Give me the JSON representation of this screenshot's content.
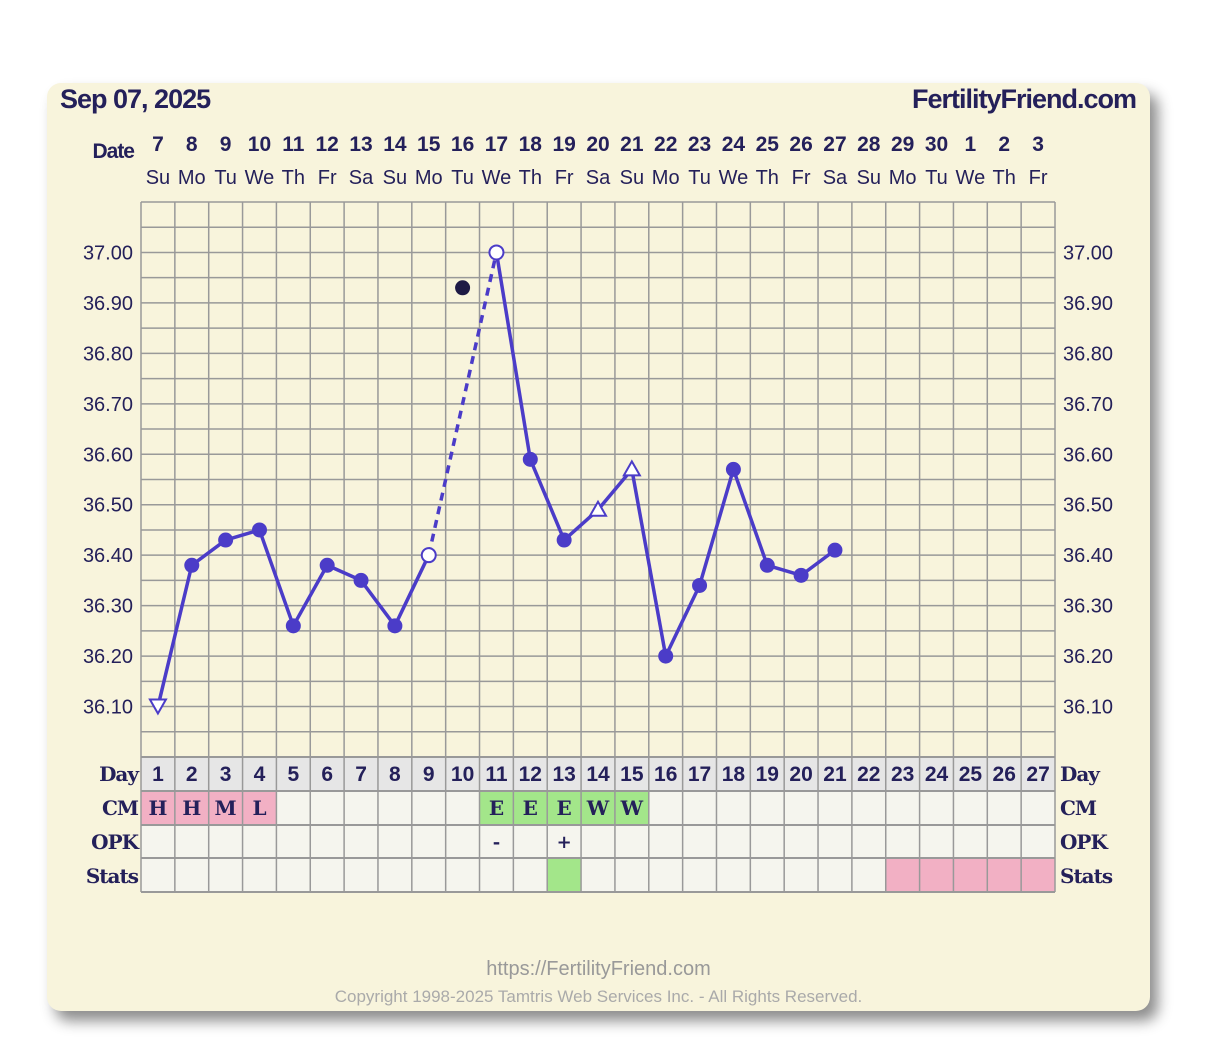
{
  "header": {
    "date": "Sep 07, 2025",
    "site": "FertilityFriend.com"
  },
  "footer": {
    "url": "https://FertilityFriend.com",
    "copyright": "Copyright 1998-2025 Tamtris Web Services Inc. - All Rights Reserved."
  },
  "colors": {
    "line": "#4b3cc8",
    "text": "#24205a",
    "pink": "#f2b0c4",
    "green": "#a3e68a",
    "grid": "#999999"
  },
  "chart_data": {
    "type": "line",
    "title": "Sep 07, 2025",
    "row_labels": {
      "date": "Date",
      "day": "Day",
      "cm": "CM",
      "opk": "OPK",
      "stats": "Stats"
    },
    "dates": [
      "7",
      "8",
      "9",
      "10",
      "11",
      "12",
      "13",
      "14",
      "15",
      "16",
      "17",
      "18",
      "19",
      "20",
      "21",
      "22",
      "23",
      "24",
      "25",
      "26",
      "27",
      "28",
      "29",
      "30",
      "1",
      "2",
      "3"
    ],
    "weekdays": [
      "Su",
      "Mo",
      "Tu",
      "We",
      "Th",
      "Fr",
      "Sa",
      "Su",
      "Mo",
      "Tu",
      "We",
      "Th",
      "Fr",
      "Sa",
      "Su",
      "Mo",
      "Tu",
      "We",
      "Th",
      "Fr",
      "Sa",
      "Su",
      "Mo",
      "Tu",
      "We",
      "Th",
      "Fr"
    ],
    "days": [
      1,
      2,
      3,
      4,
      5,
      6,
      7,
      8,
      9,
      10,
      11,
      12,
      13,
      14,
      15,
      16,
      17,
      18,
      19,
      20,
      21,
      22,
      23,
      24,
      25,
      26,
      27
    ],
    "y_ticks": [
      "37.00",
      "36.90",
      "36.80",
      "36.70",
      "36.60",
      "36.50",
      "36.40",
      "36.30",
      "36.20",
      "36.10"
    ],
    "ylim": [
      36.0,
      37.1
    ],
    "temps": [
      {
        "day": 1,
        "v": 36.1,
        "m": "open-triangle"
      },
      {
        "day": 2,
        "v": 36.38,
        "m": "dot"
      },
      {
        "day": 3,
        "v": 36.43,
        "m": "dot"
      },
      {
        "day": 4,
        "v": 36.45,
        "m": "dot"
      },
      {
        "day": 5,
        "v": 36.26,
        "m": "dot"
      },
      {
        "day": 6,
        "v": 36.38,
        "m": "dot"
      },
      {
        "day": 7,
        "v": 36.35,
        "m": "dot"
      },
      {
        "day": 8,
        "v": 36.26,
        "m": "dot"
      },
      {
        "day": 9,
        "v": 36.4,
        "m": "open-circle"
      },
      {
        "day": 10,
        "v": 36.93,
        "m": "excluded"
      },
      {
        "day": 11,
        "v": 37.0,
        "m": "open-circle"
      },
      {
        "day": 12,
        "v": 36.59,
        "m": "dot"
      },
      {
        "day": 13,
        "v": 36.43,
        "m": "dot"
      },
      {
        "day": 14,
        "v": 36.49,
        "m": "open-triangle"
      },
      {
        "day": 15,
        "v": 36.57,
        "m": "open-triangle"
      },
      {
        "day": 16,
        "v": 36.2,
        "m": "dot"
      },
      {
        "day": 17,
        "v": 36.34,
        "m": "dot"
      },
      {
        "day": 18,
        "v": 36.57,
        "m": "dot"
      },
      {
        "day": 19,
        "v": 36.38,
        "m": "dot"
      },
      {
        "day": 20,
        "v": 36.36,
        "m": "dot"
      },
      {
        "day": 21,
        "v": 36.41,
        "m": "dot"
      }
    ],
    "dashed_segment": [
      9,
      11
    ],
    "cm": {
      "1": "H",
      "2": "H",
      "3": "M",
      "4": "L",
      "11": "E",
      "12": "E",
      "13": "E",
      "14": "W",
      "15": "W"
    },
    "opk": {
      "11": "-",
      "13": "+"
    },
    "stats_green": [
      13
    ],
    "stats_pink": [
      23,
      24,
      25,
      26,
      27
    ]
  }
}
